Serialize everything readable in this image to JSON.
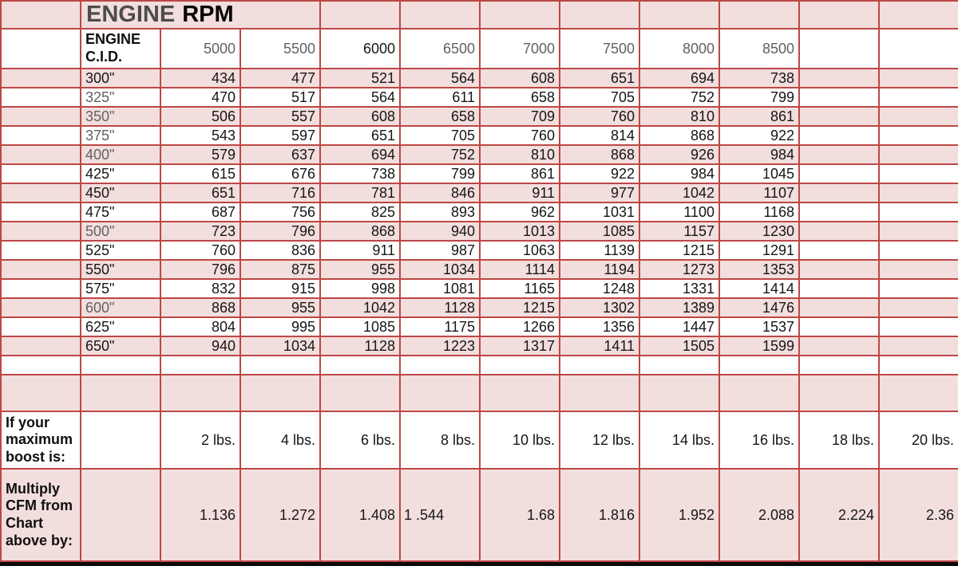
{
  "colors": {
    "grid_border": "#bc4744",
    "row_pink_fill": "#f2dedd",
    "text_black": "#161616",
    "text_muted_gray": "#616163",
    "title_gray": "#4c4c4e",
    "bottom_bar_black": "#0a0a0a"
  },
  "title": {
    "word1": "ENGINE",
    "word2": "RPM"
  },
  "table": {
    "cid_header": "ENGINE C.I.D.",
    "rpm_headers": [
      {
        "label": "5000",
        "muted": true
      },
      {
        "label": "5500",
        "muted": true
      },
      {
        "label": "6000",
        "muted": false
      },
      {
        "label": "6500",
        "muted": true
      },
      {
        "label": "7000",
        "muted": true
      },
      {
        "label": "7500",
        "muted": true
      },
      {
        "label": "8000",
        "muted": true
      },
      {
        "label": "8500",
        "muted": true
      }
    ],
    "rows": [
      {
        "cid": "300\"",
        "muted": false,
        "values": [
          434,
          477,
          521,
          564,
          608,
          651,
          694,
          738
        ]
      },
      {
        "cid": "325\"",
        "muted": true,
        "values": [
          470,
          517,
          564,
          611,
          658,
          705,
          752,
          799
        ]
      },
      {
        "cid": "350\"",
        "muted": true,
        "values": [
          506,
          557,
          608,
          658,
          709,
          760,
          810,
          861
        ]
      },
      {
        "cid": "375\"",
        "muted": true,
        "values": [
          543,
          597,
          651,
          705,
          760,
          814,
          868,
          922
        ]
      },
      {
        "cid": "400\"",
        "muted": true,
        "values": [
          579,
          637,
          694,
          752,
          810,
          868,
          926,
          984
        ]
      },
      {
        "cid": "425\"",
        "muted": false,
        "values": [
          615,
          676,
          738,
          799,
          861,
          922,
          984,
          1045
        ]
      },
      {
        "cid": "450\"",
        "muted": false,
        "values": [
          651,
          716,
          781,
          846,
          911,
          977,
          1042,
          1107
        ]
      },
      {
        "cid": "475\"",
        "muted": false,
        "values": [
          687,
          756,
          825,
          893,
          962,
          1031,
          1100,
          1168
        ]
      },
      {
        "cid": "500\"",
        "muted": true,
        "values": [
          723,
          796,
          868,
          940,
          1013,
          1085,
          1157,
          1230
        ]
      },
      {
        "cid": "525\"",
        "muted": false,
        "values": [
          760,
          836,
          911,
          987,
          1063,
          1139,
          1215,
          1291
        ]
      },
      {
        "cid": "550\"",
        "muted": false,
        "values": [
          796,
          875,
          955,
          1034,
          1114,
          1194,
          1273,
          1353
        ]
      },
      {
        "cid": "575\"",
        "muted": false,
        "values": [
          832,
          915,
          998,
          1081,
          1165,
          1248,
          1331,
          1414
        ]
      },
      {
        "cid": "600\"",
        "muted": true,
        "values": [
          868,
          955,
          1042,
          1128,
          1215,
          1302,
          1389,
          1476
        ]
      },
      {
        "cid": "625\"",
        "muted": false,
        "values": [
          804,
          995,
          1085,
          1175,
          1266,
          1356,
          1447,
          1537
        ]
      },
      {
        "cid": "650\"",
        "muted": false,
        "values": [
          940,
          1034,
          1128,
          1223,
          1317,
          1411,
          1505,
          1599
        ]
      }
    ]
  },
  "boost": {
    "label": "If your maximum boost is:",
    "values": [
      "2 lbs.",
      "4 lbs.",
      "6 lbs.",
      "8 lbs.",
      "10 lbs.",
      "12 lbs.",
      "14 lbs.",
      "16 lbs.",
      "18 lbs.",
      "20 lbs."
    ]
  },
  "multiplier": {
    "label": "Multiply CFM from Chart above by:",
    "values": [
      "1.136",
      "1.272",
      "1.408",
      "1 .544",
      "1.68",
      "1.816",
      "1.952",
      "2.088",
      "2.224",
      "2.36"
    ],
    "left_aligned_index": 3
  }
}
